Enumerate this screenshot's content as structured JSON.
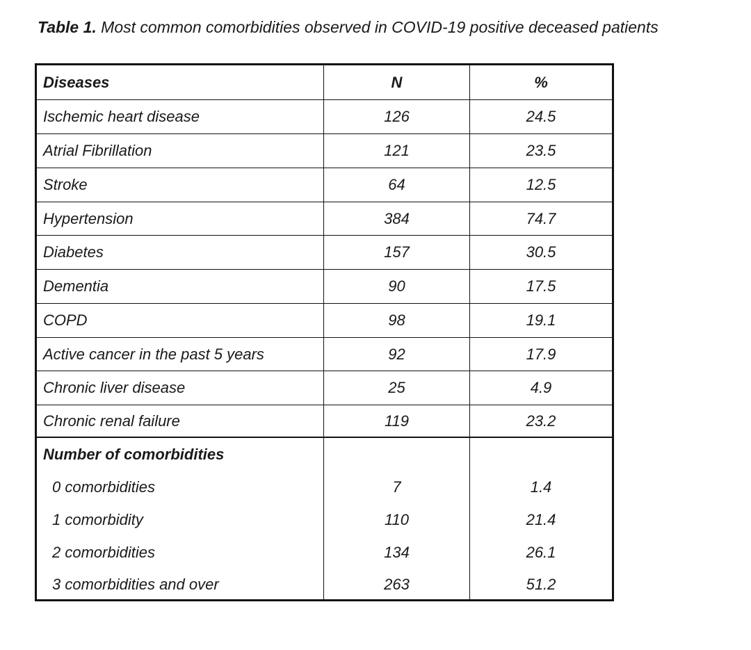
{
  "caption": {
    "label": "Table 1.",
    "text": " Most common comorbidities observed in COVID-19 positive deceased patients"
  },
  "table": {
    "headers": [
      "Diseases",
      "N",
      "%"
    ],
    "diseases": [
      {
        "name": "Ischemic heart disease",
        "n": "126",
        "pct": "24.5"
      },
      {
        "name": "Atrial Fibrillation",
        "n": "121",
        "pct": "23.5"
      },
      {
        "name": "Stroke",
        "n": "64",
        "pct": "12.5"
      },
      {
        "name": "Hypertension",
        "n": "384",
        "pct": "74.7"
      },
      {
        "name": "Diabetes",
        "n": "157",
        "pct": "30.5"
      },
      {
        "name": "Dementia",
        "n": "90",
        "pct": "17.5"
      },
      {
        "name": "COPD",
        "n": "98",
        "pct": "19.1"
      },
      {
        "name": "Active cancer in the past 5 years",
        "n": "92",
        "pct": "17.9"
      },
      {
        "name": "Chronic liver disease",
        "n": "25",
        "pct": "4.9"
      },
      {
        "name": "Chronic renal failure",
        "n": "119",
        "pct": "23.2"
      }
    ],
    "comorbidities_heading": "Number of comorbidities",
    "comorbidities": [
      {
        "name": "0 comorbidities",
        "n": "7",
        "pct": "1.4"
      },
      {
        "name": "1 comorbidity",
        "n": "110",
        "pct": "21.4"
      },
      {
        "name": "2 comorbidities",
        "n": "134",
        "pct": "26.1"
      },
      {
        "name": "3 comorbidities and over",
        "n": "263",
        "pct": "51.2"
      }
    ]
  }
}
